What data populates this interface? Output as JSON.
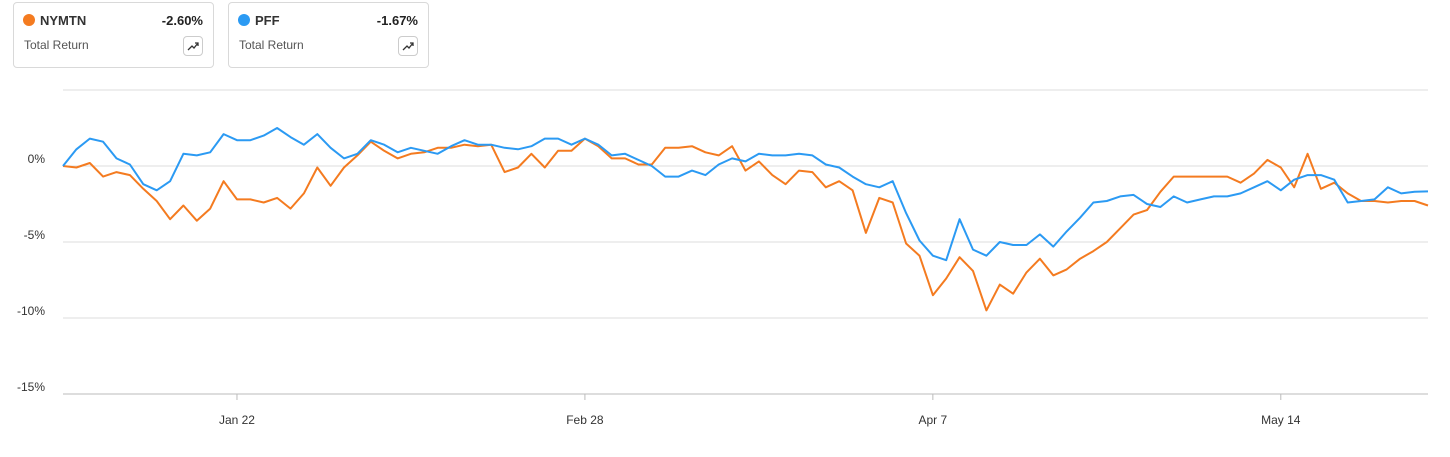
{
  "chart_data": {
    "type": "line",
    "summary_title": "Total Return",
    "categories": [
      null,
      null,
      null,
      null,
      null,
      null,
      null,
      null,
      null,
      null,
      null,
      null,
      null,
      "Jan 22",
      null,
      null,
      null,
      null,
      null,
      null,
      null,
      null,
      null,
      null,
      null,
      null,
      null,
      null,
      null,
      null,
      null,
      null,
      null,
      null,
      null,
      null,
      null,
      null,
      null,
      "Feb 28",
      null,
      null,
      null,
      null,
      null,
      null,
      null,
      null,
      null,
      null,
      null,
      null,
      null,
      null,
      null,
      null,
      null,
      null,
      null,
      null,
      null,
      null,
      null,
      null,
      null,
      "Apr 7",
      null,
      null,
      null,
      null,
      null,
      null,
      null,
      null,
      null,
      null,
      null,
      null,
      null,
      null,
      null,
      null,
      null,
      null,
      null,
      null,
      null,
      null,
      null,
      null,
      null,
      "May 14",
      null,
      null,
      null,
      null,
      null,
      null,
      null,
      null,
      null,
      null,
      null
    ],
    "series": [
      {
        "name": "NYMTN",
        "color": "#f47b20",
        "total_return": {
          "value": -2.6,
          "label": "-2.60%"
        },
        "values": [
          0,
          -0.1,
          0.2,
          -0.7,
          -0.4,
          -0.6,
          -1.5,
          -2.3,
          -3.5,
          -2.6,
          -3.6,
          -2.8,
          -1.0,
          -2.2,
          -2.2,
          -2.4,
          -2.1,
          -2.8,
          -1.8,
          -0.1,
          -1.3,
          -0.1,
          0.7,
          1.6,
          1.0,
          0.5,
          0.8,
          0.9,
          1.2,
          1.2,
          1.4,
          1.3,
          1.4,
          -0.4,
          -0.1,
          0.8,
          -0.1,
          1.0,
          1.0,
          1.8,
          1.3,
          0.5,
          0.5,
          0.1,
          0.1,
          1.2,
          1.2,
          1.3,
          0.9,
          0.7,
          1.3,
          -0.3,
          0.3,
          -0.6,
          -1.2,
          -0.3,
          -0.4,
          -1.4,
          -1.0,
          -1.6,
          -4.4,
          -2.1,
          -2.4,
          -5.1,
          -5.9,
          -8.5,
          -7.4,
          -6.0,
          -6.9,
          -9.5,
          -7.8,
          -8.4,
          -7.0,
          -6.1,
          -7.2,
          -6.8,
          -6.1,
          -5.6,
          -5.0,
          -4.1,
          -3.2,
          -2.9,
          -1.7,
          -0.7,
          -0.7,
          -0.7,
          -0.7,
          -0.7,
          -1.1,
          -0.5,
          0.4,
          -0.1,
          -1.4,
          0.8,
          -1.5,
          -1.1,
          -1.8,
          -2.3,
          -2.3,
          -2.4,
          -2.3,
          -2.3,
          -2.6
        ]
      },
      {
        "name": "PFF",
        "color": "#2b9af3",
        "total_return": {
          "value": -1.67,
          "label": "-1.67%"
        },
        "values": [
          0,
          1.1,
          1.8,
          1.6,
          0.5,
          0.1,
          -1.2,
          -1.6,
          -1.0,
          0.8,
          0.7,
          0.9,
          2.1,
          1.7,
          1.7,
          2.0,
          2.5,
          1.9,
          1.4,
          2.1,
          1.2,
          0.5,
          0.8,
          1.7,
          1.4,
          0.9,
          1.2,
          1.0,
          0.8,
          1.3,
          1.7,
          1.4,
          1.4,
          1.2,
          1.1,
          1.3,
          1.8,
          1.8,
          1.4,
          1.8,
          1.4,
          0.7,
          0.8,
          0.4,
          0.0,
          -0.7,
          -0.7,
          -0.3,
          -0.6,
          0.1,
          0.5,
          0.3,
          0.8,
          0.7,
          0.7,
          0.8,
          0.7,
          0.1,
          -0.1,
          -0.7,
          -1.2,
          -1.4,
          -1.0,
          -3.1,
          -4.9,
          -5.9,
          -6.2,
          -3.5,
          -5.5,
          -5.9,
          -5.0,
          -5.2,
          -5.2,
          -4.5,
          -5.3,
          -4.3,
          -3.4,
          -2.4,
          -2.3,
          -2.0,
          -1.9,
          -2.5,
          -2.7,
          -2.0,
          -2.4,
          -2.2,
          -2.0,
          -2.0,
          -1.8,
          -1.4,
          -1.0,
          -1.6,
          -0.9,
          -0.6,
          -0.6,
          -0.9,
          -2.4,
          -2.3,
          -2.2,
          -1.4,
          -1.8,
          -1.7,
          -1.67
        ]
      }
    ],
    "ylim": [
      -15,
      5
    ],
    "yticks": [
      {
        "value": 0,
        "label": "0%"
      },
      {
        "value": -5,
        "label": "-5%"
      },
      {
        "value": -10,
        "label": "-10%"
      },
      {
        "value": -15,
        "label": "-15%"
      }
    ],
    "grid": true
  }
}
